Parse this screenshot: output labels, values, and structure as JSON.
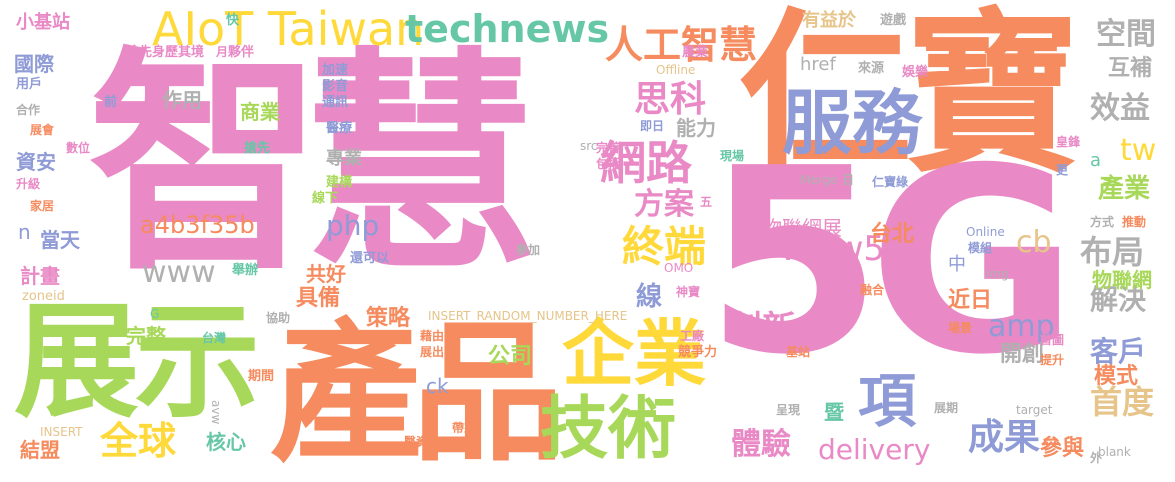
{
  "words": [
    {
      "text": "智慧",
      "color": "#e98ac6"
    },
    {
      "text": "仁寶",
      "color": "#f58b5e"
    },
    {
      "text": "5G",
      "color": "#e98ac6"
    },
    {
      "text": "產品",
      "color": "#f58b5e"
    },
    {
      "text": "展示",
      "color": "#a8d85a"
    },
    {
      "text": "企業",
      "color": "#ffd83a"
    },
    {
      "text": "技術",
      "color": "#a8d85a"
    },
    {
      "text": "服務",
      "color": "#8f9bd6"
    },
    {
      "text": "AIoT Taiwan",
      "color": "#ffd83a"
    },
    {
      "text": "technews",
      "color": "#66c7a7"
    },
    {
      "text": "人工智慧",
      "color": "#f58b5e"
    },
    {
      "text": "網路",
      "color": "#e98ac6"
    },
    {
      "text": "終端",
      "color": "#ffd83a"
    },
    {
      "text": "項",
      "color": "#8f9bd6"
    },
    {
      "text": "思科",
      "color": "#e98ac6"
    },
    {
      "text": "方案",
      "color": "#e98ac6"
    },
    {
      "text": "創新",
      "color": "#e98ac6"
    },
    {
      "text": "全球",
      "color": "#ffd83a"
    },
    {
      "text": "體驗",
      "color": "#e98ac6"
    },
    {
      "text": "成果",
      "color": "#8f9bd6"
    },
    {
      "text": "delivery",
      "color": "#e98ac6"
    },
    {
      "text": "www5",
      "color": "#e98ac6"
    },
    {
      "text": "www",
      "color": "#b0b0b0"
    },
    {
      "text": "a4b3f35b",
      "color": "#f58b5e"
    },
    {
      "text": "php",
      "color": "#8f9bd6"
    },
    {
      "text": "amp",
      "color": "#8f9bd6"
    },
    {
      "text": "tw",
      "color": "#ffd83a"
    },
    {
      "text": "cb",
      "color": "#e6c48a"
    },
    {
      "text": "效益",
      "color": "#b0b0b0"
    },
    {
      "text": "空間",
      "color": "#b0b0b0"
    },
    {
      "text": "互補",
      "color": "#b0b0b0"
    },
    {
      "text": "布局",
      "color": "#b0b0b0"
    },
    {
      "text": "解決",
      "color": "#b0b0b0"
    },
    {
      "text": "客戶",
      "color": "#8f9bd6"
    },
    {
      "text": "首度",
      "color": "#e6c48a"
    },
    {
      "text": "產業",
      "color": "#a8d85a"
    },
    {
      "text": "物聯網",
      "color": "#a8d85a"
    },
    {
      "text": "物聯網展",
      "color": "#e98ac6"
    },
    {
      "text": "台北",
      "color": "#f58b5e"
    },
    {
      "text": "線",
      "color": "#8f9bd6"
    },
    {
      "text": "近日",
      "color": "#f58b5e"
    },
    {
      "text": "開創",
      "color": "#b0b0b0"
    },
    {
      "text": "模式",
      "color": "#f58b5e"
    },
    {
      "text": "參與",
      "color": "#f58b5e"
    },
    {
      "text": "公司",
      "color": "#a8d85a"
    },
    {
      "text": "策略",
      "color": "#f58b5e"
    },
    {
      "text": "具備",
      "color": "#f58b5e"
    },
    {
      "text": "共好",
      "color": "#f58b5e"
    },
    {
      "text": "完整",
      "color": "#a8d85a"
    },
    {
      "text": "暨",
      "color": "#66c7a7"
    },
    {
      "text": "結盟",
      "color": "#f58b5e"
    },
    {
      "text": "核心",
      "color": "#66c7a7"
    },
    {
      "text": "計畫",
      "color": "#e98ac6"
    },
    {
      "text": "當天",
      "color": "#8f9bd6"
    },
    {
      "text": "資安",
      "color": "#8f9bd6"
    },
    {
      "text": "國際",
      "color": "#8f9bd6"
    },
    {
      "text": "小基站",
      "color": "#e98ac6"
    },
    {
      "text": "作用",
      "color": "#b0b0b0"
    },
    {
      "text": "商業",
      "color": "#a8d85a"
    },
    {
      "text": "專業",
      "color": "#b0b0b0"
    },
    {
      "text": "能力",
      "color": "#b0b0b0"
    },
    {
      "text": "有益於",
      "color": "#e6c48a"
    },
    {
      "text": "href",
      "color": "#b0b0b0"
    },
    {
      "text": "Offline",
      "color": "#e6c48a"
    },
    {
      "text": "ck",
      "color": "#8f9bd6"
    },
    {
      "text": "INSERT_RANDOM_NUMBER_HERE",
      "color": "#e6c48a"
    },
    {
      "text": "n",
      "color": "#8f9bd6"
    },
    {
      "text": "中",
      "color": "#8f9bd6"
    },
    {
      "text": "a",
      "color": "#66c7a7"
    },
    {
      "text": "blank",
      "color": "#b0b0b0"
    },
    {
      "text": "搶先身歷其境",
      "color": "#e98ac6"
    },
    {
      "text": "快",
      "color": "#66c7a7"
    },
    {
      "text": "月",
      "color": "#e98ac6"
    },
    {
      "text": "夥伴",
      "color": "#e98ac6"
    },
    {
      "text": "農業",
      "color": "#e98ac6"
    },
    {
      "text": "遊戲",
      "color": "#b0b0b0"
    },
    {
      "text": "娛樂",
      "color": "#e98ac6"
    },
    {
      "text": "來源",
      "color": "#b0b0b0"
    },
    {
      "text": "加速",
      "color": "#8f9bd6"
    },
    {
      "text": "影音",
      "color": "#8f9bd6"
    },
    {
      "text": "通訊",
      "color": "#8f9bd6"
    },
    {
      "text": "醫療",
      "color": "#8f9bd6"
    },
    {
      "text": "用戶",
      "color": "#8f9bd6"
    },
    {
      "text": "合作",
      "color": "#b0b0b0"
    },
    {
      "text": "展會",
      "color": "#f58b5e"
    },
    {
      "text": "數位",
      "color": "#e98ac6"
    },
    {
      "text": "升級",
      "color": "#e98ac6"
    },
    {
      "text": "家居",
      "color": "#f58b5e"
    },
    {
      "text": "前",
      "color": "#8f9bd6"
    },
    {
      "text": "搶先",
      "color": "#66c7a7"
    },
    {
      "text": "建構",
      "color": "#a8d85a"
    },
    {
      "text": "線下",
      "color": "#a8d85a"
    },
    {
      "text": "還可以",
      "color": "#8f9bd6"
    },
    {
      "text": "參加",
      "color": "#b0b0b0"
    },
    {
      "text": "舉辦",
      "color": "#66c7a7"
    },
    {
      "text": "zoneid",
      "color": "#e6c48a"
    },
    {
      "text": "G",
      "color": "#66c7a7"
    },
    {
      "text": "台灣",
      "color": "#66c7a7"
    },
    {
      "text": "協助",
      "color": "#b0b0b0"
    },
    {
      "text": "期間",
      "color": "#f58b5e"
    },
    {
      "text": "INSERT",
      "color": "#e6c48a"
    },
    {
      "text": "avw",
      "color": "#b0b0b0"
    },
    {
      "text": "醫資",
      "color": "#f58b5e"
    },
    {
      "text": "帶來",
      "color": "#f58b5e"
    },
    {
      "text": "展出",
      "color": "#f58b5e"
    },
    {
      "text": "藉由",
      "color": "#f58b5e"
    },
    {
      "text": "工廠",
      "color": "#e98ac6"
    },
    {
      "text": "競爭力",
      "color": "#f58b5e"
    },
    {
      "text": "基站",
      "color": "#f58b5e"
    },
    {
      "text": "神寶",
      "color": "#e98ac6"
    },
    {
      "text": "OMO",
      "color": "#e98ac6"
    },
    {
      "text": "src",
      "color": "#b0b0b0"
    },
    {
      "text": "完善",
      "color": "#e98ac6"
    },
    {
      "text": "包括",
      "color": "#e98ac6"
    },
    {
      "text": "即日",
      "color": "#8f9bd6"
    },
    {
      "text": "現場",
      "color": "#66c7a7"
    },
    {
      "text": "五",
      "color": "#e98ac6"
    },
    {
      "text": "Merge",
      "color": "#b0b0b0"
    },
    {
      "text": "日",
      "color": "#b0b0b0"
    },
    {
      "text": "仁寶綠",
      "color": "#8f9bd6"
    },
    {
      "text": "皇鋒",
      "color": "#e98ac6"
    },
    {
      "text": "更",
      "color": "#8f9bd6"
    },
    {
      "text": "Online",
      "color": "#8f9bd6"
    },
    {
      "text": "模組",
      "color": "#8f9bd6"
    },
    {
      "text": "img",
      "color": "#b0b0b0"
    },
    {
      "text": "方式",
      "color": "#b0b0b0"
    },
    {
      "text": "推動",
      "color": "#f58b5e"
    },
    {
      "text": "融合",
      "color": "#f58b5e"
    },
    {
      "text": "場景",
      "color": "#f58b5e"
    },
    {
      "text": "首圖",
      "color": "#e98ac6"
    },
    {
      "text": "提升",
      "color": "#f58b5e"
    },
    {
      "text": "展期",
      "color": "#b0b0b0"
    },
    {
      "text": "呈現",
      "color": "#b0b0b0"
    },
    {
      "text": "target",
      "color": "#b0b0b0"
    },
    {
      "text": "外",
      "color": "#b0b0b0"
    }
  ]
}
